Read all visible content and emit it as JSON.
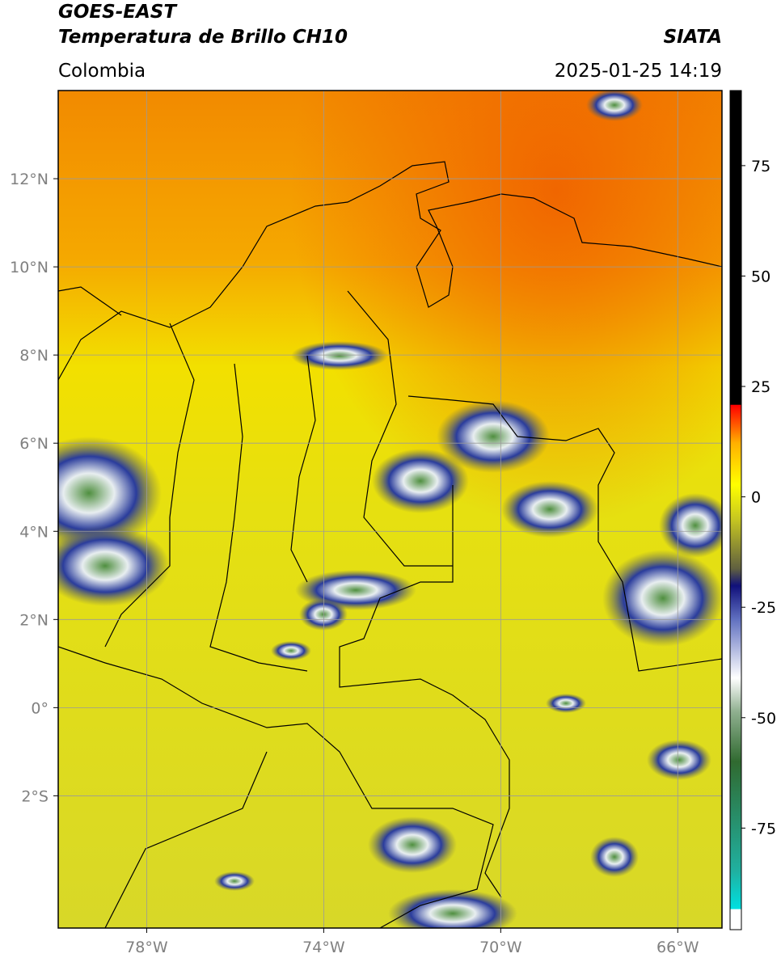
{
  "header": {
    "satellite": "GOES-EAST",
    "product": "Temperatura de Brillo CH10",
    "agency": "SIATA",
    "region": "Colombia",
    "timestamp": "2025-01-25 14:19"
  },
  "map": {
    "lonlim": [
      -80,
      -65
    ],
    "latlim": [
      -5,
      14
    ],
    "grid": true,
    "xticks": [
      {
        "value": -78,
        "label": "78°W"
      },
      {
        "value": -74,
        "label": "74°W"
      },
      {
        "value": -70,
        "label": "70°W"
      },
      {
        "value": -66,
        "label": "66°W"
      }
    ],
    "yticks": [
      {
        "value": 12,
        "label": "12°N"
      },
      {
        "value": 10,
        "label": "10°N"
      },
      {
        "value": 8,
        "label": "8°N"
      },
      {
        "value": 6,
        "label": "6°N"
      },
      {
        "value": 4,
        "label": "4°N"
      },
      {
        "value": 2,
        "label": "2°N"
      },
      {
        "value": 0,
        "label": "0°"
      },
      {
        "value": -2,
        "label": "2°S"
      }
    ]
  },
  "colorbar": {
    "lim": [
      -98,
      92
    ],
    "ticks": [
      75,
      50,
      25,
      0,
      -25,
      -50,
      -75
    ]
  }
}
